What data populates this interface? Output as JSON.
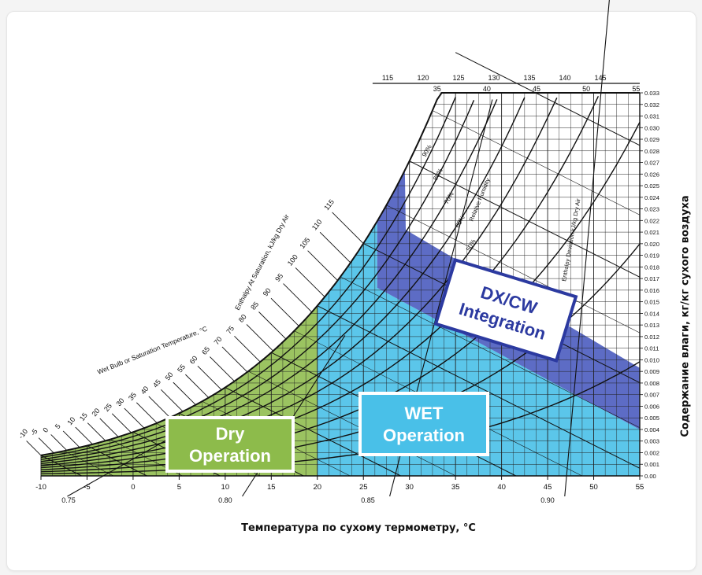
{
  "chart_data": {
    "type": "area",
    "xlabel": "Температура по сухому термометру, °C",
    "ylabel": "Содержание влаги, кг/кг сухого воздуха",
    "xlim": [
      -10,
      55
    ],
    "ylim": [
      0,
      0.033
    ],
    "x_ticks": [
      -10,
      -5,
      0,
      5,
      10,
      15,
      20,
      25,
      30,
      35,
      40,
      45,
      50,
      55
    ],
    "y_ticks": [
      0.0,
      0.001,
      0.002,
      0.003,
      0.004,
      0.005,
      0.006,
      0.007,
      0.008,
      0.009,
      0.01,
      0.011,
      0.012,
      0.013,
      0.014,
      0.015,
      0.016,
      0.017,
      0.018,
      0.019,
      0.02,
      0.021,
      0.022,
      0.023,
      0.024,
      0.025,
      0.026,
      0.027,
      0.028,
      0.029,
      0.03,
      0.031,
      0.032,
      0.033
    ],
    "y_tick_labels": [
      "0.00",
      "0.001",
      "0.002",
      "0.003",
      "0.004",
      "0.005",
      "0.006",
      "0.007",
      "0.008",
      "0.009",
      "0.010",
      "0.011",
      "0.012",
      "0.013",
      "0.014",
      "0.015",
      "0.016",
      "0.017",
      "0.018",
      "0.019",
      "0.020",
      "0.021",
      "0.022",
      "0.023",
      "0.024",
      "0.025",
      "0.026",
      "0.027",
      "0.028",
      "0.029",
      "0.030",
      "0.031",
      "0.032",
      "0.033"
    ],
    "top_ticks": [
      "115",
      "120",
      "125",
      "130",
      "135",
      "140",
      "145"
    ],
    "top_inner_ticks": [
      "35",
      "40",
      "45",
      "50",
      "55"
    ],
    "enthalpy_ticks": [
      "-10",
      "-5",
      "0",
      "5",
      "10",
      "15",
      "20",
      "25",
      "30",
      "35",
      "40",
      "45",
      "50",
      "55",
      "60",
      "65",
      "70",
      "75",
      "80",
      "85",
      "90",
      "95",
      "100",
      "105",
      "110",
      "115"
    ],
    "specific_volume_labels": [
      "0.75",
      "0.80",
      "0.85",
      "0.90"
    ],
    "annotations": [
      "Wet Bulb or Saturation Temperature, °C",
      "Enthalpy At Saturation, kJ/kg Dry Air",
      "Relative Humidity",
      "Enthalpy Deviation kJ/kg Dry Air"
    ],
    "rh_labels": [
      "90%",
      "80%",
      "70%",
      "60%",
      "50%"
    ],
    "regions": [
      {
        "name": "Dry Operation",
        "label": "Dry\nOperation",
        "color": "#8dbb4b",
        "x_range": [
          -10,
          20
        ]
      },
      {
        "name": "WET Operation",
        "label": "WET\nOperation",
        "color": "#49c0e8",
        "x_range": [
          20,
          55
        ]
      },
      {
        "name": "DX/CW Integration",
        "label": "DX/CW\nIntegration",
        "color": "#4f5fc0",
        "x_range": [
          25,
          55
        ]
      }
    ],
    "grid": true
  }
}
